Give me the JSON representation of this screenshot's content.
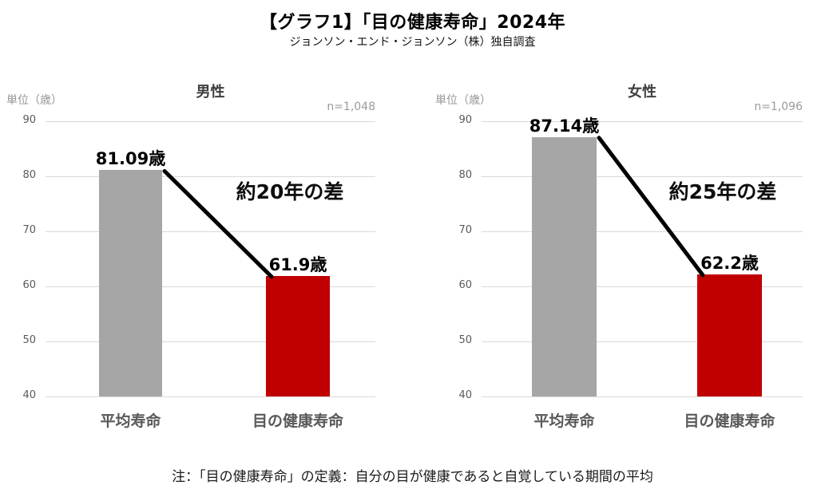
{
  "page": {
    "title": "【グラフ1】「目の健康寿命」2024年",
    "subtitle": "ジョンソン・エンド・ジョンソン（株）独自調査",
    "footnote": "注：「目の健康寿命」の定義：自分の目が健康であると自覚している期間の平均"
  },
  "colors": {
    "average_lifespan_bar": "#A6A6A6",
    "eye_health_bar": "#C00000",
    "gridline": "#D9D9D9",
    "connector_line": "#000000",
    "tick_label": "#595959",
    "muted_label": "#969696"
  },
  "chart_data": [
    {
      "type": "bar",
      "title": "男性",
      "sample_size_label": "n=1,048",
      "unit_label": "単位（歳）",
      "categories": [
        "平均寿命",
        "目の健康寿命"
      ],
      "values": [
        81.09,
        61.9
      ],
      "value_labels": [
        "81.09歳",
        "61.9歳"
      ],
      "bar_colors": [
        "#A6A6A6",
        "#C00000"
      ],
      "gap_annotation": "約20年の差",
      "ylim": [
        40,
        90
      ],
      "yticks": [
        90,
        80,
        70,
        60,
        50,
        40
      ],
      "grid": true,
      "legend": "none"
    },
    {
      "type": "bar",
      "title": "女性",
      "sample_size_label": "n=1,096",
      "unit_label": "単位（歳）",
      "categories": [
        "平均寿命",
        "目の健康寿命"
      ],
      "values": [
        87.14,
        62.2
      ],
      "value_labels": [
        "87.14歳",
        "62.2歳"
      ],
      "bar_colors": [
        "#A6A6A6",
        "#C00000"
      ],
      "gap_annotation": "約25年の差",
      "ylim": [
        40,
        90
      ],
      "yticks": [
        90,
        80,
        70,
        60,
        50,
        40
      ],
      "grid": true,
      "legend": "none"
    }
  ]
}
